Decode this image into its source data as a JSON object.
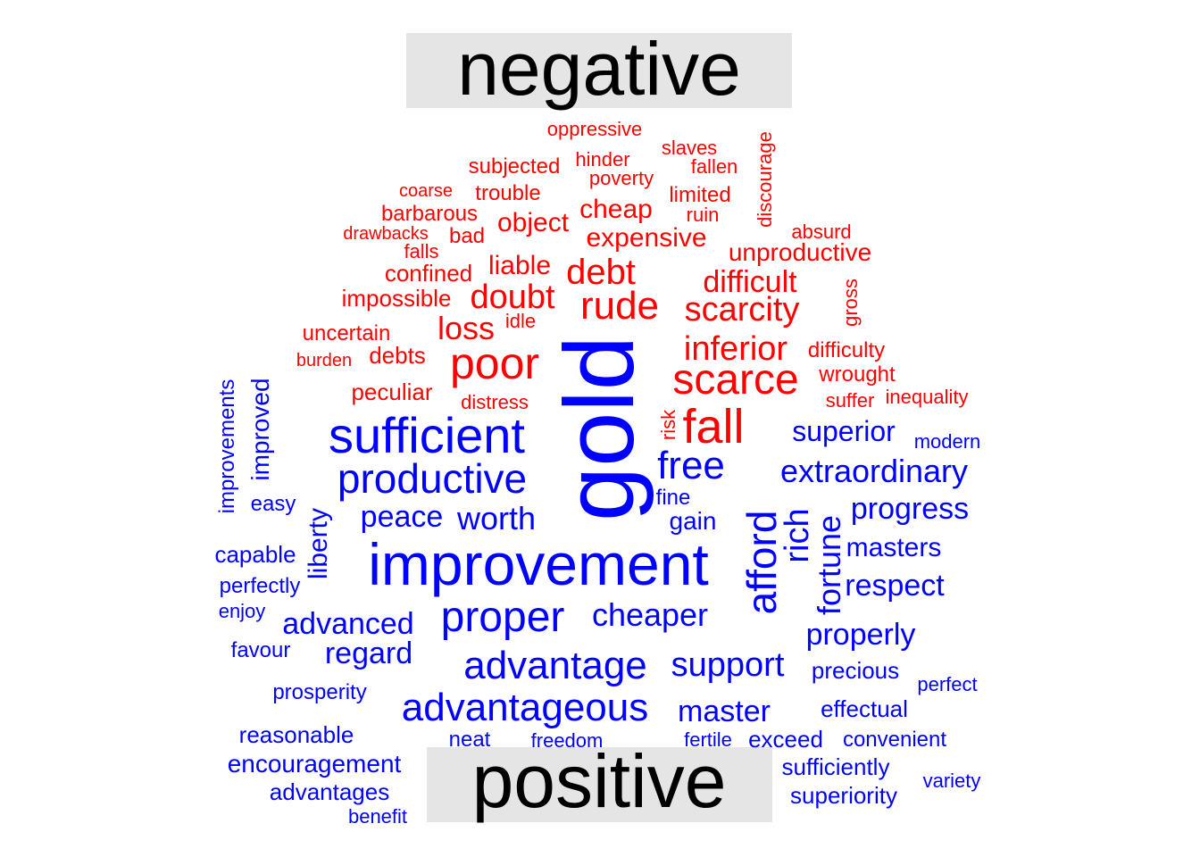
{
  "chart_data": {
    "type": "comparison_wordcloud",
    "groups": [
      {
        "name": "negative",
        "color": "#ff0000"
      },
      {
        "name": "positive",
        "color": "#0000ff"
      }
    ],
    "negative_words": [
      "oppressive",
      "slaves",
      "subjected",
      "hinder",
      "fallen",
      "discourage",
      "poverty",
      "coarse",
      "trouble",
      "limited",
      "barbarous",
      "cheap",
      "ruin",
      "drawbacks",
      "bad",
      "object",
      "absurd",
      "expensive",
      "falls",
      "unproductive",
      "debt",
      "liable",
      "confined",
      "difficult",
      "gross",
      "impossible",
      "doubt",
      "rude",
      "scarcity",
      "loss",
      "idle",
      "uncertain",
      "inferior",
      "debts",
      "poor",
      "difficulty",
      "burden",
      "wrought",
      "scarce",
      "peculiar",
      "inequality",
      "suffer",
      "distress",
      "risk",
      "fall"
    ],
    "positive_words": [
      "gold",
      "improvements",
      "improved",
      "sufficient",
      "superior",
      "modern",
      "free",
      "extraordinary",
      "productive",
      "easy",
      "fine",
      "peace",
      "worth",
      "gain",
      "afford",
      "rich",
      "progress",
      "fortune",
      "liberty",
      "capable",
      "improvement",
      "masters",
      "respect",
      "perfectly",
      "enjoy",
      "advanced",
      "proper",
      "cheaper",
      "properly",
      "favour",
      "regard",
      "advantage",
      "support",
      "precious",
      "prosperity",
      "perfect",
      "advantageous",
      "master",
      "effectual",
      "reasonable",
      "neat",
      "freedom",
      "fertile",
      "exceed",
      "convenient",
      "encouragement",
      "sufficiently",
      "variety",
      "advantages",
      "superiority",
      "benefit"
    ]
  },
  "labels": {
    "negative": "negative",
    "positive": "positive"
  }
}
